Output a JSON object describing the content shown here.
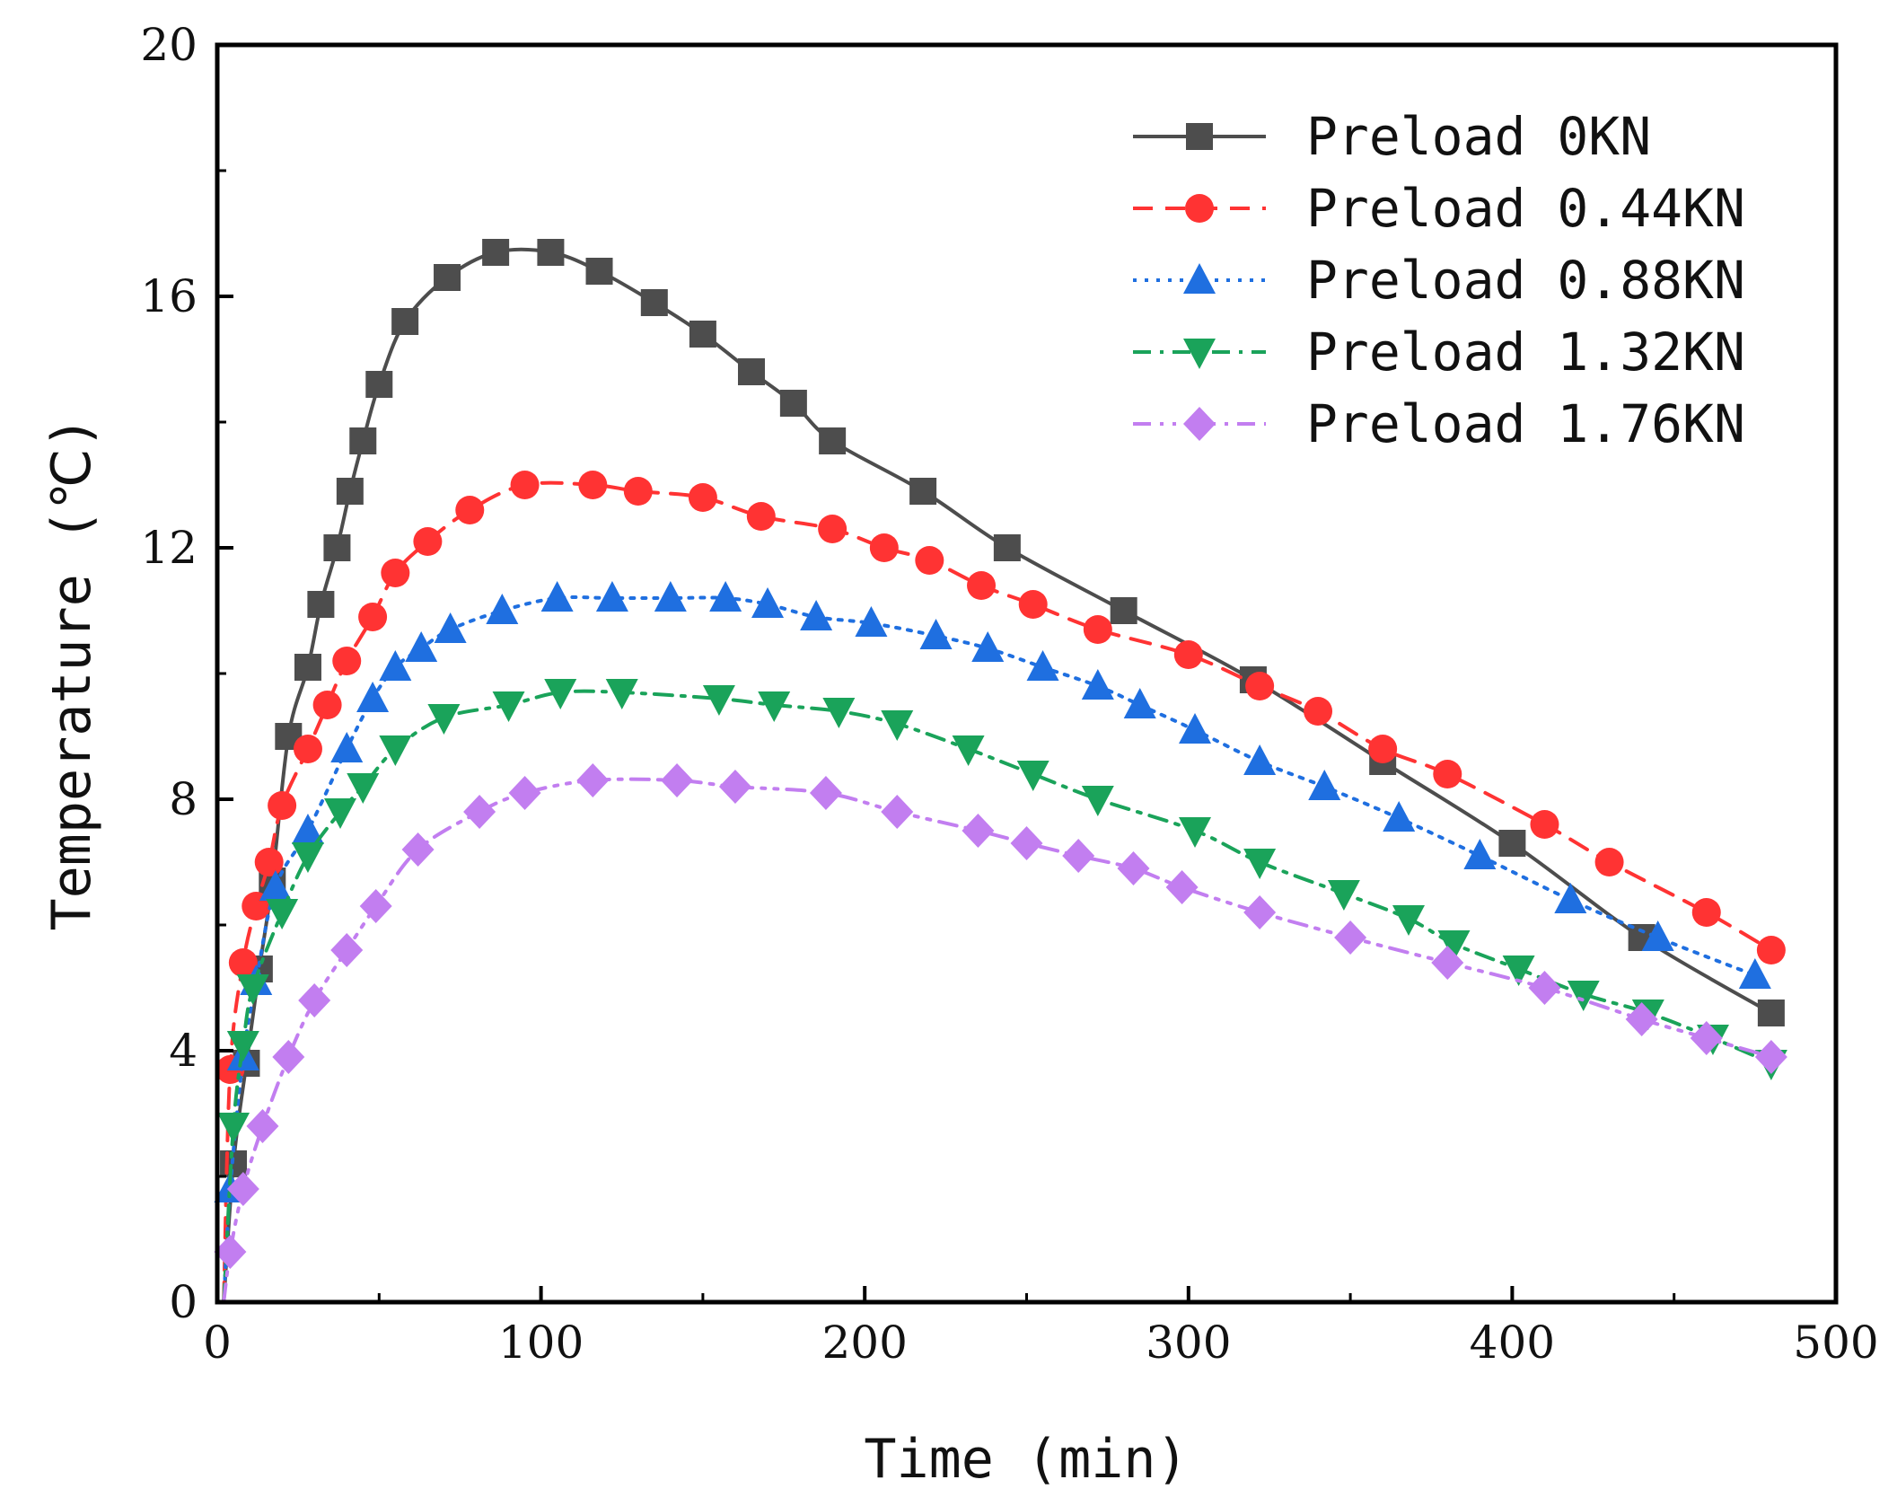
{
  "chart_data": {
    "type": "line",
    "title": "",
    "xlabel": "Time (min)",
    "ylabel": "Temperature (℃)",
    "xlim": [
      0,
      500
    ],
    "ylim": [
      0,
      20
    ],
    "xticks": [
      0,
      100,
      200,
      300,
      400,
      500
    ],
    "yticks": [
      0,
      4,
      8,
      12,
      16,
      20
    ],
    "xtick_labels": [
      "0",
      "100",
      "200",
      "300",
      "400",
      "500"
    ],
    "ytick_labels": [
      "0",
      "4",
      "8",
      "12",
      "16",
      "20"
    ],
    "grid": false,
    "legend_position": "top-right",
    "series": [
      {
        "name": "Preload 0KN",
        "color": "#4d4d4d",
        "marker": "square",
        "dash": "solid",
        "x": [
          2,
          5,
          9,
          13,
          17,
          22,
          28,
          32,
          37,
          41,
          45,
          50,
          58,
          71,
          86,
          103,
          118,
          135,
          150,
          165,
          178,
          190,
          218,
          244,
          280,
          320,
          360,
          400,
          440,
          480
        ],
        "y": [
          0,
          2.2,
          3.8,
          5.3,
          6.7,
          9.0,
          10.1,
          11.1,
          12.0,
          12.9,
          13.7,
          14.6,
          15.6,
          16.3,
          16.7,
          16.7,
          16.4,
          15.9,
          15.4,
          14.8,
          14.3,
          13.7,
          12.9,
          12.0,
          11.0,
          9.9,
          8.6,
          7.3,
          5.8,
          4.6
        ]
      },
      {
        "name": "Preload 0.44KN",
        "color": "#ff3333",
        "marker": "circle",
        "dash": "dashed",
        "x": [
          2,
          4,
          8,
          12,
          16,
          20,
          28,
          34,
          40,
          48,
          55,
          65,
          78,
          95,
          116,
          130,
          150,
          168,
          190,
          206,
          220,
          236,
          252,
          272,
          300,
          322,
          340,
          360,
          380,
          410,
          430,
          460,
          480
        ],
        "y": [
          0,
          3.7,
          5.4,
          6.3,
          7.0,
          7.9,
          8.8,
          9.5,
          10.2,
          10.9,
          11.6,
          12.1,
          12.6,
          13.0,
          13.0,
          12.9,
          12.8,
          12.5,
          12.3,
          12.0,
          11.8,
          11.4,
          11.1,
          10.7,
          10.3,
          9.8,
          9.4,
          8.8,
          8.4,
          7.6,
          7.0,
          6.2,
          5.6
        ]
      },
      {
        "name": "Preload 0.88KN",
        "color": "#1f6fe0",
        "marker": "triangle-up",
        "dash": "dotted",
        "x": [
          2,
          4,
          8,
          12,
          18,
          28,
          40,
          48,
          55,
          63,
          72,
          88,
          105,
          122,
          140,
          157,
          170,
          185,
          202,
          222,
          238,
          255,
          272,
          285,
          302,
          322,
          342,
          365,
          390,
          418,
          445,
          475
        ],
        "y": [
          0,
          1.8,
          3.9,
          5.1,
          6.6,
          7.5,
          8.8,
          9.6,
          10.1,
          10.4,
          10.7,
          11.0,
          11.2,
          11.2,
          11.2,
          11.2,
          11.1,
          10.9,
          10.8,
          10.6,
          10.4,
          10.1,
          9.8,
          9.5,
          9.1,
          8.6,
          8.2,
          7.7,
          7.1,
          6.4,
          5.8,
          5.2
        ]
      },
      {
        "name": "Preload 1.32KN",
        "color": "#1aa35a",
        "marker": "triangle-down",
        "dash": "dash-dot",
        "x": [
          2,
          5,
          8,
          11,
          20,
          28,
          38,
          45,
          55,
          70,
          90,
          106,
          125,
          155,
          172,
          192,
          210,
          232,
          252,
          272,
          302,
          322,
          348,
          368,
          382,
          402,
          422,
          442,
          462,
          480
        ],
        "y": [
          0,
          2.8,
          4.1,
          5.0,
          6.2,
          7.1,
          7.8,
          8.2,
          8.8,
          9.3,
          9.5,
          9.7,
          9.7,
          9.6,
          9.5,
          9.4,
          9.2,
          8.8,
          8.4,
          8.0,
          7.5,
          7.0,
          6.5,
          6.1,
          5.7,
          5.3,
          4.9,
          4.6,
          4.2,
          3.8
        ]
      },
      {
        "name": "Preload 1.76KN",
        "color": "#c27ef0",
        "marker": "diamond",
        "dash": "dash-dot-dot",
        "x": [
          2,
          4,
          8,
          14,
          22,
          30,
          40,
          49,
          62,
          81,
          95,
          116,
          142,
          160,
          188,
          210,
          235,
          250,
          266,
          283,
          298,
          322,
          350,
          380,
          410,
          440,
          460,
          480
        ],
        "y": [
          0,
          0.8,
          1.8,
          2.8,
          3.9,
          4.8,
          5.6,
          6.3,
          7.2,
          7.8,
          8.1,
          8.3,
          8.3,
          8.2,
          8.1,
          7.8,
          7.5,
          7.3,
          7.1,
          6.9,
          6.6,
          6.2,
          5.8,
          5.4,
          5.0,
          4.5,
          4.2,
          3.9
        ]
      }
    ]
  }
}
